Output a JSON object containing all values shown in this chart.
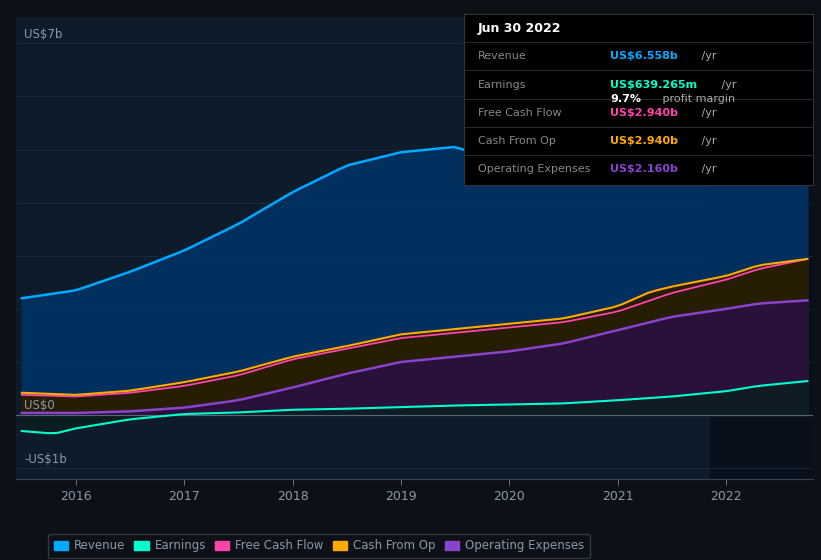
{
  "bg_color": "#0d1117",
  "plot_bg_color": "#0d1b2a",
  "grid_color": "#1e3a5f",
  "text_color": "#8899aa",
  "title_color": "#ffffff",
  "ylabel_7b": "US$7b",
  "ylabel_0": "US$0",
  "ylabel_neg1b": "-US$1b",
  "x_labels": [
    "2016",
    "2017",
    "2018",
    "2019",
    "2020",
    "2021",
    "2022"
  ],
  "ylim": [
    -1200000000.0,
    7500000000.0
  ],
  "revenue_color": "#00aaff",
  "earnings_color": "#00ffcc",
  "fcf_color": "#ff44aa",
  "cashfromop_color": "#ffaa00",
  "opex_color": "#8844cc",
  "revenue_fill_color": "#003366",
  "legend_items": [
    {
      "label": "Revenue",
      "color": "#00aaff"
    },
    {
      "label": "Earnings",
      "color": "#00ffcc"
    },
    {
      "label": "Free Cash Flow",
      "color": "#ff44aa"
    },
    {
      "label": "Cash From Op",
      "color": "#ffaa00"
    },
    {
      "label": "Operating Expenses",
      "color": "#8844cc"
    }
  ],
  "tooltip": {
    "date": "Jun 30 2022",
    "revenue_label": "Revenue",
    "revenue_value": "US$6.558b",
    "revenue_color": "#00aaff",
    "earnings_label": "Earnings",
    "earnings_value": "US$639.265m",
    "earnings_color": "#00ffcc",
    "margin_pct": "9.7%",
    "margin_label": "profit margin",
    "fcf_label": "Free Cash Flow",
    "fcf_value": "US$2.940b",
    "fcf_color": "#ff44aa",
    "cashfromop_label": "Cash From Op",
    "cashfromop_value": "US$2.940b",
    "cashfromop_color": "#ffaa00",
    "opex_label": "Operating Expenses",
    "opex_value": "US$2.160b",
    "opex_color": "#8844cc",
    "bg_color": "#000000",
    "border_color": "#333333",
    "label_color": "#888888",
    "title_color": "#ffffff",
    "unit_color": "#aaaaaa"
  },
  "n_points": 90
}
